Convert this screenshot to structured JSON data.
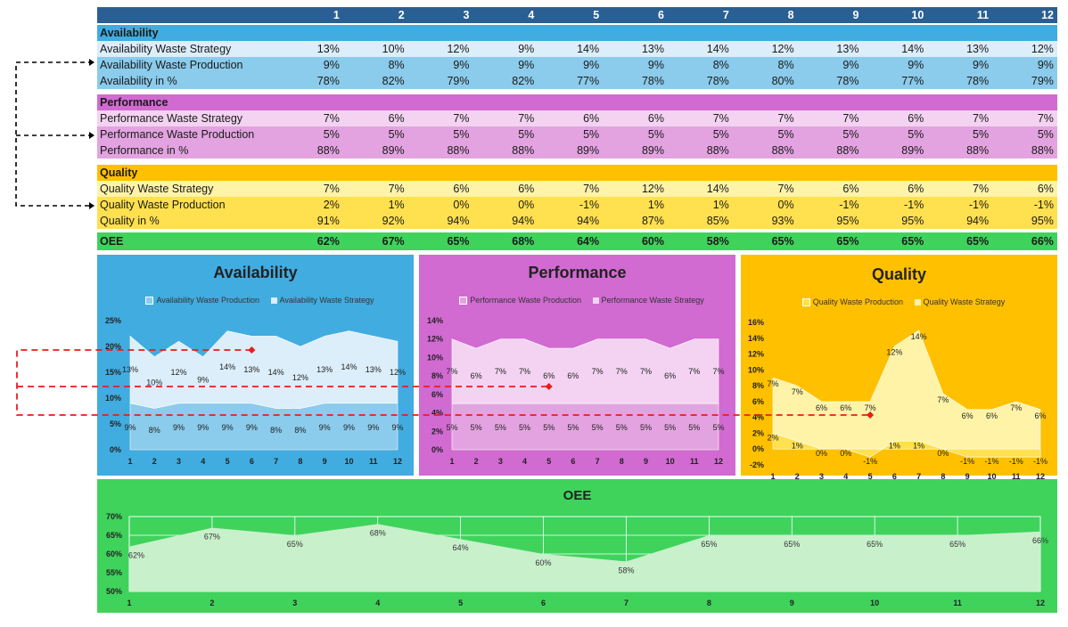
{
  "table": {
    "months": [
      "1",
      "2",
      "3",
      "4",
      "5",
      "6",
      "7",
      "8",
      "9",
      "10",
      "11",
      "12"
    ],
    "availability": {
      "title": "Availability",
      "rows": [
        {
          "label": "Availability Waste Strategy",
          "values": [
            "13%",
            "10%",
            "12%",
            "9%",
            "14%",
            "13%",
            "14%",
            "12%",
            "13%",
            "14%",
            "13%",
            "12%"
          ]
        },
        {
          "label": "Availability Waste Production",
          "values": [
            "9%",
            "8%",
            "9%",
            "9%",
            "9%",
            "9%",
            "8%",
            "8%",
            "9%",
            "9%",
            "9%",
            "9%"
          ]
        },
        {
          "label": "Availability in %",
          "values": [
            "78%",
            "82%",
            "79%",
            "82%",
            "77%",
            "78%",
            "78%",
            "80%",
            "78%",
            "77%",
            "78%",
            "79%"
          ]
        }
      ]
    },
    "performance": {
      "title": "Performance",
      "rows": [
        {
          "label": "Performance Waste Strategy",
          "values": [
            "7%",
            "6%",
            "7%",
            "7%",
            "6%",
            "6%",
            "7%",
            "7%",
            "7%",
            "6%",
            "7%",
            "7%"
          ]
        },
        {
          "label": "Performance  Waste Production",
          "values": [
            "5%",
            "5%",
            "5%",
            "5%",
            "5%",
            "5%",
            "5%",
            "5%",
            "5%",
            "5%",
            "5%",
            "5%"
          ]
        },
        {
          "label": "Performance in %",
          "values": [
            "88%",
            "89%",
            "88%",
            "88%",
            "89%",
            "89%",
            "88%",
            "88%",
            "88%",
            "89%",
            "88%",
            "88%"
          ]
        }
      ]
    },
    "quality": {
      "title": "Quality",
      "rows": [
        {
          "label": "Quality Waste Strategy",
          "values": [
            "7%",
            "7%",
            "6%",
            "6%",
            "7%",
            "12%",
            "14%",
            "7%",
            "6%",
            "6%",
            "7%",
            "6%"
          ]
        },
        {
          "label": "Quality Waste Production",
          "values": [
            "2%",
            "1%",
            "0%",
            "0%",
            "-1%",
            "1%",
            "1%",
            "0%",
            "-1%",
            "-1%",
            "-1%",
            "-1%"
          ]
        },
        {
          "label": "Quality in %",
          "values": [
            "91%",
            "92%",
            "94%",
            "94%",
            "94%",
            "87%",
            "85%",
            "93%",
            "95%",
            "95%",
            "94%",
            "95%"
          ]
        }
      ]
    },
    "oee": {
      "label": "OEE",
      "values": [
        "62%",
        "67%",
        "65%",
        "68%",
        "64%",
        "60%",
        "58%",
        "65%",
        "65%",
        "65%",
        "65%",
        "66%"
      ]
    }
  },
  "colors": {
    "header": "#2a5f93",
    "avail_title": "#41ace0",
    "avail_light": "#dbeef9",
    "avail_mid": "#8bcbec",
    "perf_title": "#d16ad1",
    "perf_light": "#f3d3f1",
    "perf_mid": "#e3a3e0",
    "qual_title": "#ffc000",
    "qual_light": "#fff3a8",
    "qual_mid": "#ffe04f",
    "oee": "#3fd35c",
    "oee_fill": "#c8f0cb",
    "connector_black": "#000000",
    "connector_red": "#e81d1d"
  },
  "chart_data": [
    {
      "type": "area",
      "title": "Availability",
      "legend": [
        "Availability Waste Production",
        "Availability Waste Strategy"
      ],
      "categories": [
        "1",
        "2",
        "3",
        "4",
        "5",
        "6",
        "7",
        "8",
        "9",
        "10",
        "11",
        "12"
      ],
      "series": [
        {
          "name": "Availability Waste Production",
          "values": [
            9,
            8,
            9,
            9,
            9,
            9,
            8,
            8,
            9,
            9,
            9,
            9
          ]
        },
        {
          "name": "Availability Waste Strategy",
          "values": [
            13,
            10,
            12,
            9,
            14,
            13,
            14,
            12,
            13,
            14,
            13,
            12
          ]
        }
      ],
      "stacked": true,
      "ylim": [
        0,
        25
      ],
      "yticks": [
        0,
        5,
        10,
        15,
        20,
        25
      ],
      "ytick_labels": [
        "0%",
        "5%",
        "10%",
        "15%",
        "20%",
        "25%"
      ],
      "marker_month": 6
    },
    {
      "type": "area",
      "title": "Performance",
      "legend": [
        "Performance  Waste Production",
        "Performance Waste Strategy"
      ],
      "categories": [
        "1",
        "2",
        "3",
        "4",
        "5",
        "6",
        "7",
        "8",
        "9",
        "10",
        "11",
        "12"
      ],
      "series": [
        {
          "name": "Performance  Waste Production",
          "values": [
            5,
            5,
            5,
            5,
            5,
            5,
            5,
            5,
            5,
            5,
            5,
            5
          ]
        },
        {
          "name": "Performance Waste Strategy",
          "values": [
            7,
            6,
            7,
            7,
            6,
            6,
            7,
            7,
            7,
            6,
            7,
            7
          ]
        }
      ],
      "stacked": true,
      "ylim": [
        0,
        14
      ],
      "yticks": [
        0,
        2,
        4,
        6,
        8,
        10,
        12,
        14
      ],
      "ytick_labels": [
        "0%",
        "2%",
        "4%",
        "6%",
        "8%",
        "10%",
        "12%",
        "14%"
      ],
      "marker_month": 5
    },
    {
      "type": "area",
      "title": "Quality",
      "legend": [
        "Quality Waste Production",
        "Quality Waste Strategy"
      ],
      "categories": [
        "1",
        "2",
        "3",
        "4",
        "5",
        "6",
        "7",
        "8",
        "9",
        "10",
        "11",
        "12"
      ],
      "series": [
        {
          "name": "Quality Waste Production",
          "values": [
            2,
            1,
            0,
            0,
            -1,
            1,
            1,
            0,
            -1,
            -1,
            -1,
            -1
          ]
        },
        {
          "name": "Quality Waste Strategy",
          "values": [
            7,
            7,
            6,
            6,
            7,
            12,
            14,
            7,
            6,
            6,
            7,
            6
          ]
        }
      ],
      "stacked": true,
      "ylim": [
        -2,
        16
      ],
      "yticks": [
        -2,
        0,
        2,
        4,
        6,
        8,
        10,
        12,
        14,
        16
      ],
      "ytick_labels": [
        "-2%",
        "0%",
        "2%",
        "4%",
        "6%",
        "8%",
        "10%",
        "12%",
        "14%",
        "16%"
      ],
      "marker_month": 5
    },
    {
      "type": "area",
      "title": "OEE",
      "categories": [
        "1",
        "2",
        "3",
        "4",
        "5",
        "6",
        "7",
        "8",
        "9",
        "10",
        "11",
        "12"
      ],
      "series": [
        {
          "name": "OEE",
          "values": [
            62,
            67,
            65,
            68,
            64,
            60,
            58,
            65,
            65,
            65,
            65,
            66
          ]
        }
      ],
      "ylim": [
        50,
        70
      ],
      "yticks": [
        50,
        55,
        60,
        65,
        70
      ],
      "ytick_labels": [
        "50%",
        "55%",
        "60%",
        "65%",
        "70%"
      ]
    }
  ]
}
